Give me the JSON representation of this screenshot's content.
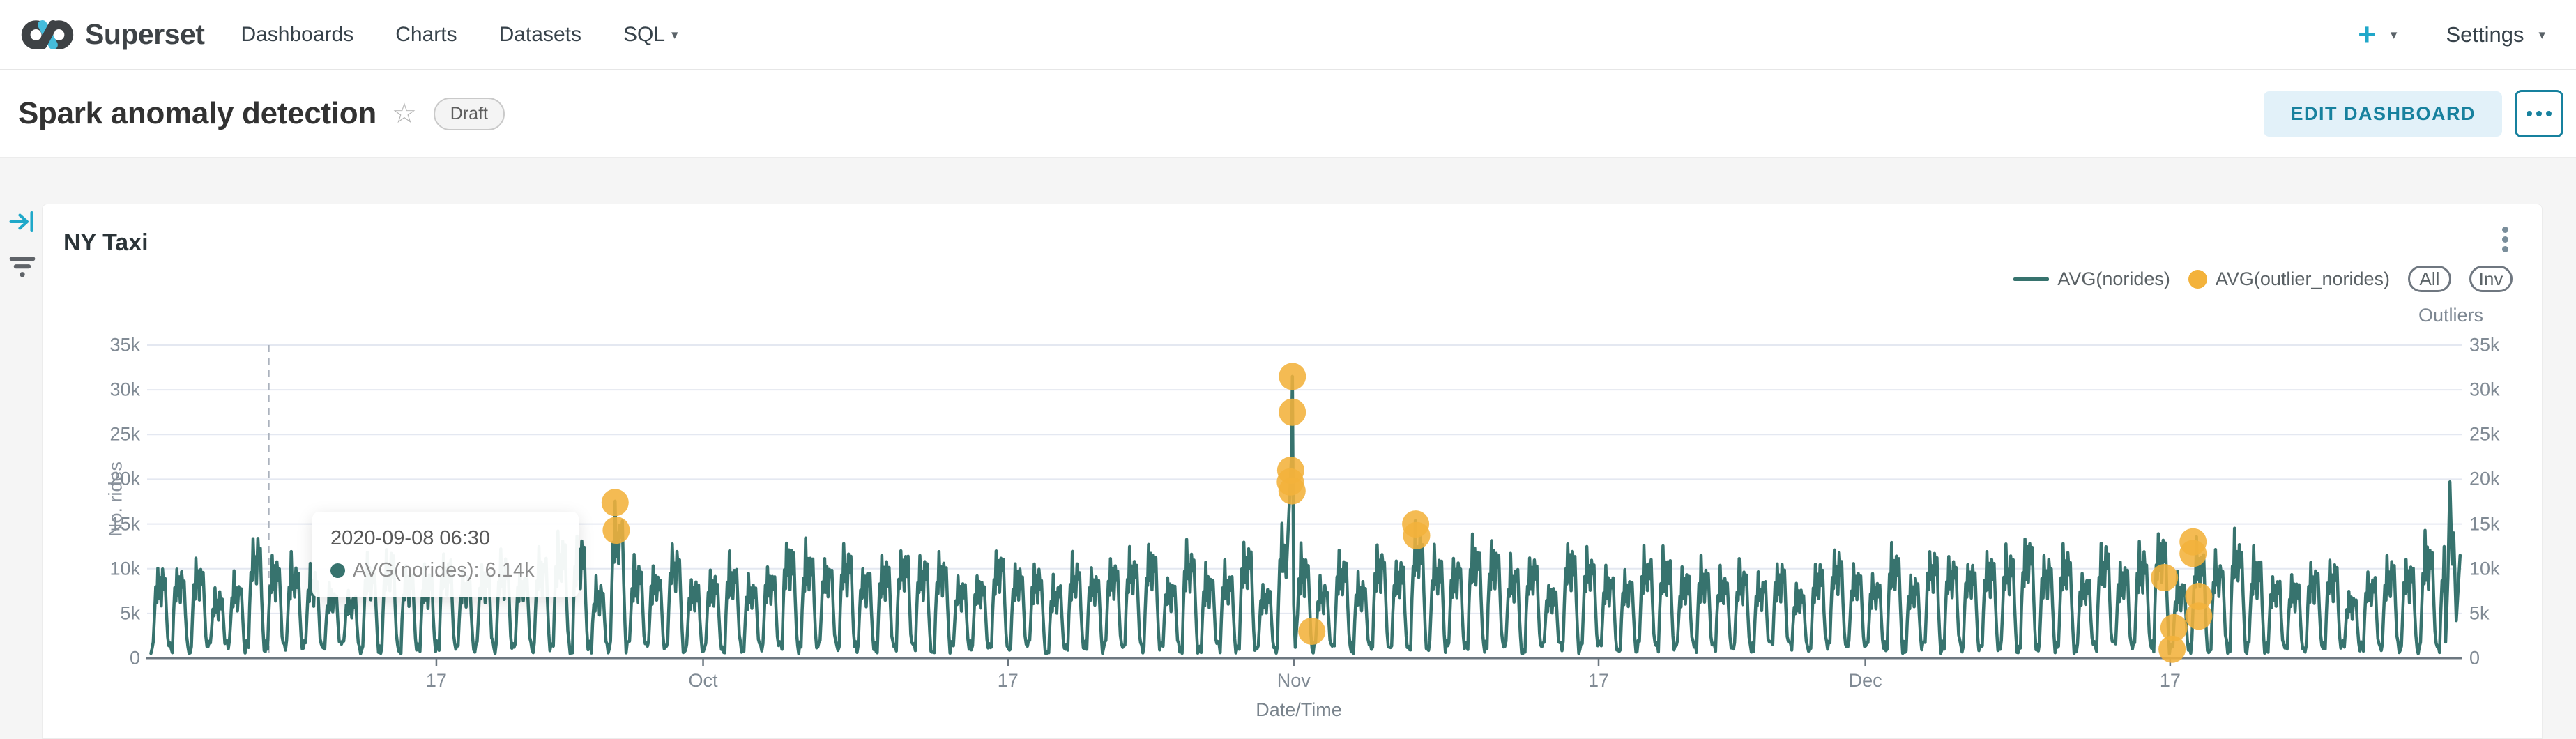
{
  "colors": {
    "accent": "#20A7C9",
    "line": "#37736E",
    "outlier": "#F3B23B",
    "grid": "#E4E8F1",
    "axis": "#6C7780",
    "hover_line": "#ABB2BD"
  },
  "navbar": {
    "brand": "Superset",
    "items": [
      {
        "label": "Dashboards",
        "caret": false
      },
      {
        "label": "Charts",
        "caret": false
      },
      {
        "label": "Datasets",
        "caret": false
      },
      {
        "label": "SQL",
        "caret": true
      }
    ],
    "plus_label": "+",
    "settings_label": "Settings"
  },
  "header": {
    "title": "Spark anomaly detection",
    "star_icon": "☆",
    "badge": "Draft",
    "edit_button": "EDIT DASHBOARD"
  },
  "card": {
    "title": "NY Taxi",
    "legend": [
      {
        "label": "AVG(norides)",
        "marker": "line",
        "color": "#37736E"
      },
      {
        "label": "AVG(outlier_norides)",
        "marker": "circle",
        "color": "#F3B23B"
      }
    ],
    "legend_buttons": [
      "All",
      "Inv"
    ],
    "right_axis_title": "Outliers"
  },
  "tooltip": {
    "title": "2020-09-08 06:30",
    "series_label": "AVG(norides)",
    "value_text": "AVG(norides): 6.14k"
  },
  "chart_data": {
    "type": "line",
    "title": "NY Taxi",
    "xlabel": "Date/Time",
    "ylabel": "No. rides",
    "ylabel_right": "Outliers",
    "x_range": [
      "2020-09-02",
      "2020-12-31"
    ],
    "ylim": [
      0,
      35000
    ],
    "grid": true,
    "legend_position": "top-right",
    "y_tick_labels": [
      "0",
      "5k",
      "10k",
      "15k",
      "20k",
      "25k",
      "30k",
      "35k"
    ],
    "x_ticks": [
      {
        "day": 15,
        "label": "17"
      },
      {
        "day": 29,
        "label": "Oct"
      },
      {
        "day": 45,
        "label": "17"
      },
      {
        "day": 60,
        "label": "Nov"
      },
      {
        "day": 76,
        "label": "17"
      },
      {
        "day": 90,
        "label": "Dec"
      },
      {
        "day": 106,
        "label": "17"
      }
    ],
    "hover": {
      "day": 6.2,
      "datetime": "2020-09-08 06:30",
      "series": "AVG(norides)",
      "value_k": 6.14
    },
    "series": [
      {
        "name": "AVG(norides)",
        "type": "line",
        "color": "#37736E",
        "unit": "thousands of rides, half-hourly",
        "pattern": {
          "seed": 11,
          "days": 120.55,
          "base_peak": 11.4,
          "peak_jitter": 2.6,
          "weekend_drop": 2.4,
          "noise": 0.06,
          "daily_shape": [
            [
              0.02,
              0.08
            ],
            [
              0.08,
              0.05
            ],
            [
              0.14,
              0.1
            ],
            [
              0.2,
              0.42
            ],
            [
              0.27,
              0.72
            ],
            [
              0.33,
              0.6
            ],
            [
              0.38,
              1.0
            ],
            [
              0.44,
              0.66
            ],
            [
              0.5,
              0.85
            ],
            [
              0.56,
              0.58
            ],
            [
              0.63,
              0.9
            ],
            [
              0.7,
              0.74
            ],
            [
              0.76,
              0.86
            ],
            [
              0.83,
              0.5
            ],
            [
              0.9,
              0.22
            ],
            [
              0.96,
              0.1
            ]
          ],
          "day_peak_overrides": {
            "24": 17.4,
            "59": 15.3,
            "66": 15.0,
            "105": 14.5,
            "106": 9.2,
            "107": 13.2,
            "120": 12.0
          },
          "spikes": [
            {
              "day": 59.93,
              "value": 31.5,
              "clear": [
                59.55,
                60.15
              ],
              "rise": [
                [
                  59.6,
                  9.0
                ],
                [
                  59.72,
                  15.0
                ],
                [
                  59.82,
                  19.7
                ],
                [
                  59.87,
                  22.0
                ]
              ],
              "fall": [
                [
                  60.0,
                  6.0
                ],
                [
                  60.08,
                  1.2
                ]
              ]
            },
            {
              "day": 120.68,
              "value": 19.7,
              "clear": [
                120.42,
                121.3
              ],
              "rise": [
                [
                  120.46,
                  1.8
                ],
                [
                  120.58,
                  9.0
                ]
              ],
              "fall": [
                [
                  120.8,
                  10.5
                ],
                [
                  120.88,
                  14.0
                ],
                [
                  121.02,
                  4.2
                ],
                [
                  121.22,
                  11.5
                ]
              ]
            }
          ]
        }
      },
      {
        "name": "AVG(outlier_norides)",
        "type": "scatter",
        "color": "#F3B23B",
        "points_day_valuek": [
          [
            24.38,
            17.4
          ],
          [
            24.44,
            14.3
          ],
          [
            59.93,
            31.5
          ],
          [
            59.925,
            27.5
          ],
          [
            59.84,
            21.0
          ],
          [
            59.82,
            19.7
          ],
          [
            59.91,
            18.7
          ],
          [
            60.95,
            3.0
          ],
          [
            66.4,
            15.0
          ],
          [
            66.45,
            13.7
          ],
          [
            107.2,
            13.0
          ],
          [
            107.2,
            11.7
          ],
          [
            105.7,
            9.0
          ],
          [
            107.5,
            6.9
          ],
          [
            107.5,
            4.7
          ],
          [
            106.2,
            3.4
          ],
          [
            106.1,
            1.0
          ]
        ]
      }
    ]
  }
}
